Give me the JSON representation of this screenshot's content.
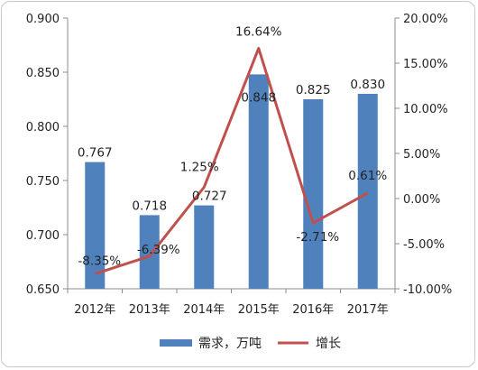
{
  "chart_data": {
    "type": "bar+line",
    "categories": [
      "2012年",
      "2013年",
      "2014年",
      "2015年",
      "2016年",
      "2017年"
    ],
    "series": [
      {
        "name": "需求，万吨",
        "type": "bar",
        "axis": "left",
        "values": [
          0.767,
          0.718,
          0.727,
          0.848,
          0.825,
          0.83
        ],
        "labels": [
          "0.767",
          "0.718",
          "0.727",
          "0.848",
          "0.825",
          "0.830"
        ]
      },
      {
        "name": "增长",
        "type": "line",
        "axis": "right",
        "values": [
          -8.35,
          -6.39,
          1.25,
          16.64,
          -2.71,
          0.61
        ],
        "labels": [
          "-8.35%",
          "-6.39%",
          "1.25%",
          "16.64%",
          "-2.71%",
          "0.61%"
        ]
      }
    ],
    "y_left": {
      "ylim": [
        0.65,
        0.9
      ],
      "ticks": [
        "0.650",
        "0.700",
        "0.750",
        "0.800",
        "0.850",
        "0.900"
      ]
    },
    "y_right": {
      "ylim": [
        -10,
        20
      ],
      "ticks": [
        "-10.00%",
        "-5.00%",
        "0.00%",
        "5.00%",
        "10.00%",
        "15.00%",
        "20.00%"
      ]
    },
    "colors": {
      "bar": "#4f81bd",
      "line": "#c0504d"
    },
    "legend_position": "bottom",
    "grid": false
  }
}
